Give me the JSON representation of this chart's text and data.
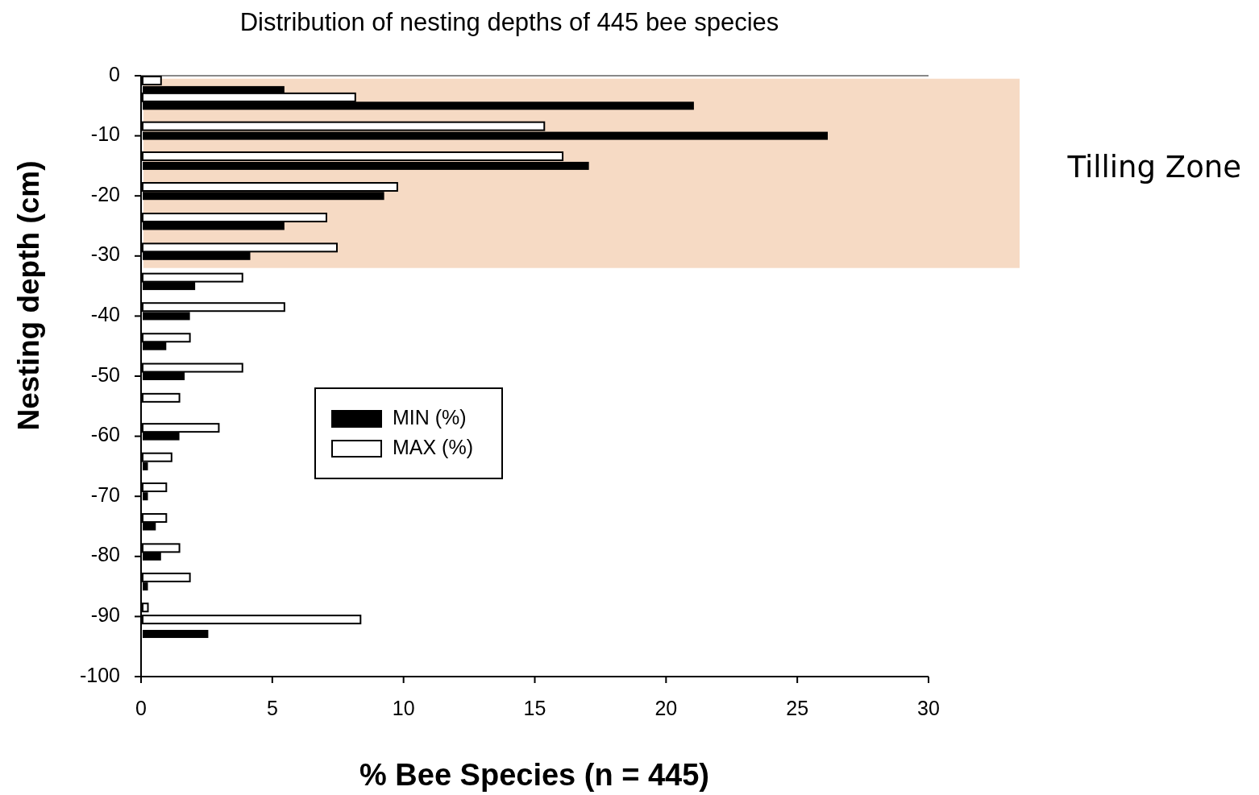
{
  "chart_data": {
    "type": "bar",
    "orientation": "horizontal",
    "title": "Distribution of nesting depths of 445 bee species",
    "xlabel": "% Bee Species (n = 445)",
    "ylabel": "Nesting depth (cm)",
    "xlim": [
      0,
      30
    ],
    "xticks": [
      0,
      5,
      10,
      15,
      20,
      25,
      30
    ],
    "ylim": [
      -100,
      0
    ],
    "yticks": [
      0,
      -10,
      -20,
      -30,
      -40,
      -50,
      -60,
      -70,
      -80,
      -90,
      -100
    ],
    "legend": "left",
    "series": [
      {
        "name": "MIN (%)",
        "color": "#000000",
        "x": [
          -2.4,
          -5,
          -10,
          -15,
          -20,
          -25,
          -30,
          -35,
          -40,
          -45,
          -50,
          -60,
          -65,
          -70,
          -75,
          -80,
          -85,
          -92.9
        ],
        "values": [
          5.4,
          21.0,
          26.1,
          17.0,
          9.2,
          5.4,
          4.1,
          2.0,
          1.8,
          0.9,
          1.6,
          1.4,
          0.2,
          0.2,
          0.5,
          0.7,
          0.2,
          2.5
        ]
      },
      {
        "name": "MAX (%)",
        "color": "#ffffff",
        "x": [
          -0.8,
          -3.6,
          -8.4,
          -13.4,
          -18.5,
          -23.6,
          -28.6,
          -33.6,
          -38.5,
          -43.6,
          -48.6,
          -53.6,
          -58.6,
          -63.5,
          -68.5,
          -73.6,
          -78.6,
          -83.5,
          -88.5,
          -90.5
        ],
        "values": [
          0.7,
          8.1,
          15.3,
          16.0,
          9.7,
          7.0,
          7.4,
          3.8,
          5.4,
          1.8,
          3.8,
          1.4,
          2.9,
          1.1,
          0.9,
          0.9,
          1.4,
          1.8,
          0.2,
          8.3
        ]
      }
    ],
    "bands": [
      {
        "axis": "y",
        "from": -0.5,
        "to": -32,
        "label": "Tilling Zone",
        "color": "#f6dac4"
      }
    ]
  }
}
